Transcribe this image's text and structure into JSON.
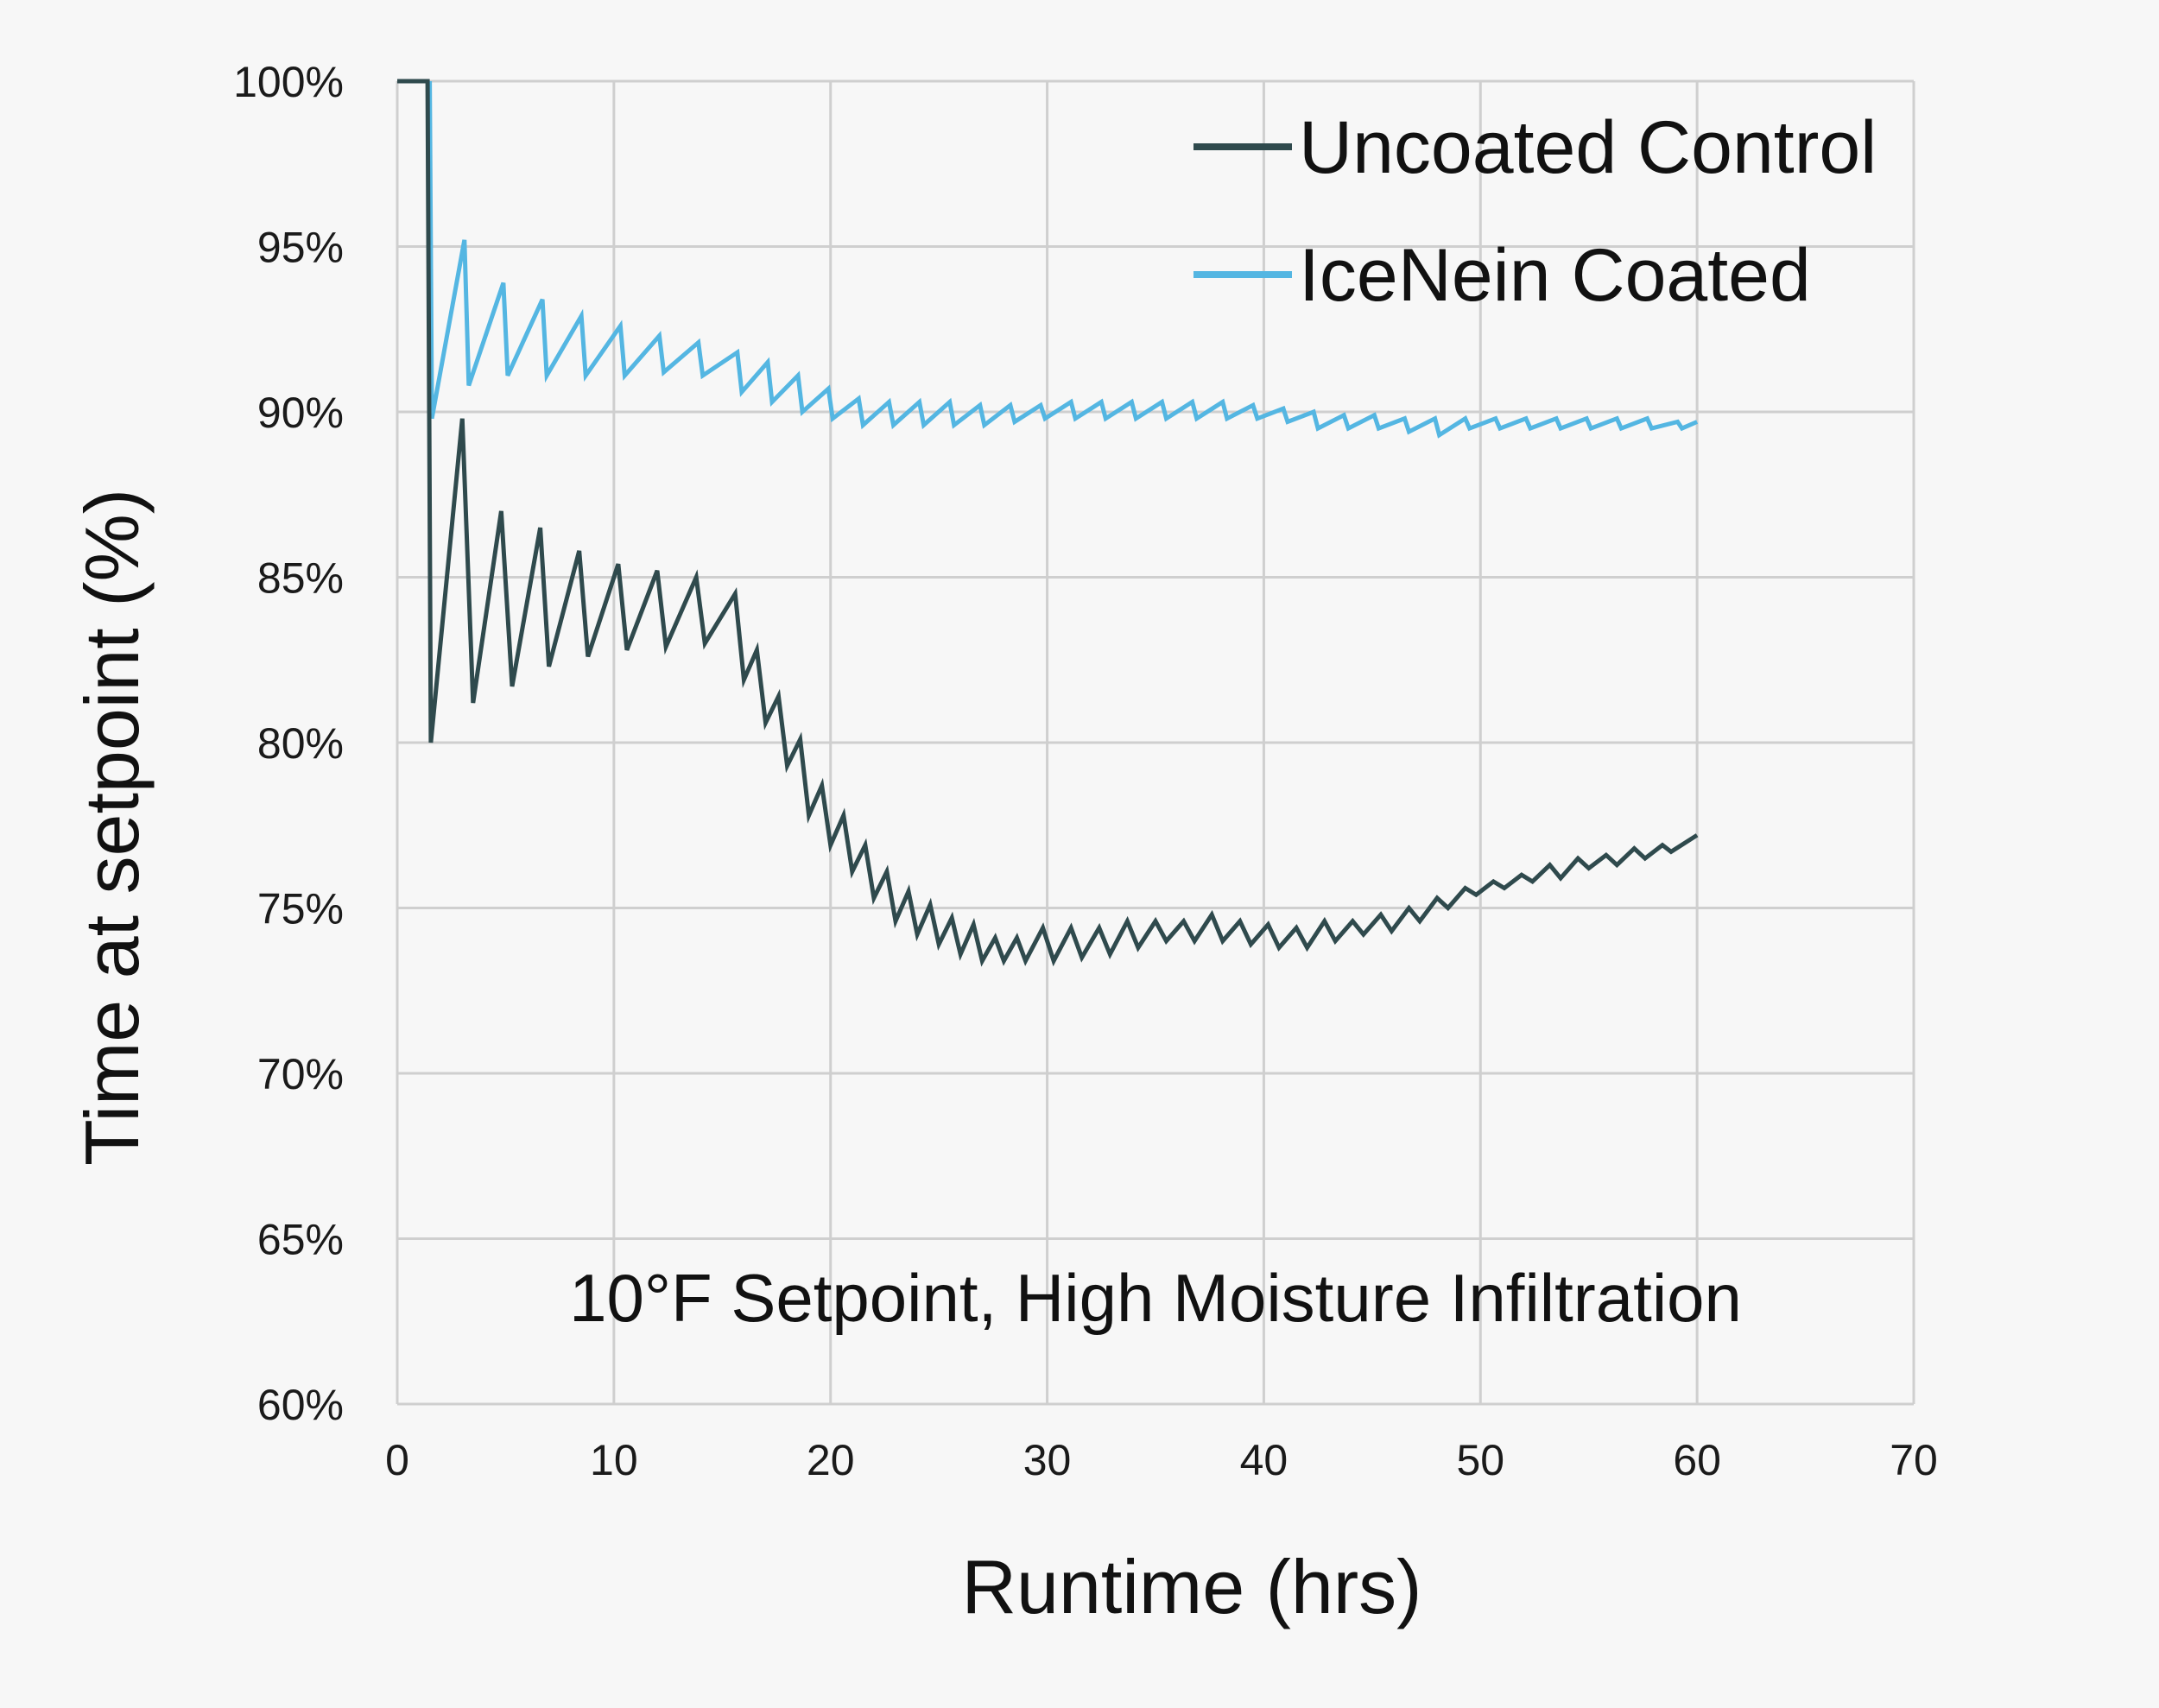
{
  "chart_data": {
    "type": "line",
    "title": "",
    "xlabel": "Runtime (hrs)",
    "ylabel": "Time at setpoint (%)",
    "xlim": [
      0,
      70
    ],
    "ylim": [
      60,
      100
    ],
    "x_ticks": [
      0,
      10,
      20,
      30,
      40,
      50,
      60,
      70
    ],
    "x_tick_labels": [
      "0",
      "10",
      "20",
      "30",
      "40",
      "50",
      "60",
      "70"
    ],
    "y_ticks": [
      60,
      65,
      70,
      75,
      80,
      85,
      90,
      95,
      100
    ],
    "y_tick_labels": [
      "60%",
      "65%",
      "70%",
      "75%",
      "80%",
      "85%",
      "90%",
      "95%",
      "100%"
    ],
    "grid": true,
    "legend_position": "top-right",
    "annotation": "10°F Setpoint, High Moisture Infiltration",
    "series": [
      {
        "name": "Uncoated Control",
        "color": "#2f4a4d",
        "points": [
          [
            0,
            100
          ],
          [
            1.4,
            100
          ],
          [
            1.55,
            80
          ],
          [
            3.0,
            89.8
          ],
          [
            3.5,
            81.2
          ],
          [
            4.8,
            87.0
          ],
          [
            5.3,
            81.7
          ],
          [
            6.6,
            86.5
          ],
          [
            7.0,
            82.3
          ],
          [
            8.4,
            85.8
          ],
          [
            8.8,
            82.6
          ],
          [
            10.2,
            85.4
          ],
          [
            10.6,
            82.8
          ],
          [
            12.0,
            85.2
          ],
          [
            12.4,
            82.9
          ],
          [
            13.8,
            85.0
          ],
          [
            14.2,
            83.0
          ],
          [
            15.6,
            84.5
          ],
          [
            16.0,
            81.9
          ],
          [
            16.6,
            82.8
          ],
          [
            17.0,
            80.6
          ],
          [
            17.6,
            81.4
          ],
          [
            18.0,
            79.3
          ],
          [
            18.6,
            80.1
          ],
          [
            19.0,
            77.8
          ],
          [
            19.6,
            78.7
          ],
          [
            20.0,
            76.9
          ],
          [
            20.6,
            77.8
          ],
          [
            21.0,
            76.1
          ],
          [
            21.6,
            76.9
          ],
          [
            22.0,
            75.3
          ],
          [
            22.6,
            76.1
          ],
          [
            23.0,
            74.6
          ],
          [
            23.6,
            75.5
          ],
          [
            24.0,
            74.2
          ],
          [
            24.6,
            75.1
          ],
          [
            25.0,
            73.9
          ],
          [
            25.6,
            74.7
          ],
          [
            26.0,
            73.6
          ],
          [
            26.6,
            74.5
          ],
          [
            27.0,
            73.4
          ],
          [
            27.6,
            74.1
          ],
          [
            28.0,
            73.4
          ],
          [
            28.6,
            74.1
          ],
          [
            29.0,
            73.4
          ],
          [
            29.8,
            74.4
          ],
          [
            30.3,
            73.4
          ],
          [
            31.1,
            74.4
          ],
          [
            31.6,
            73.5
          ],
          [
            32.4,
            74.4
          ],
          [
            32.9,
            73.6
          ],
          [
            33.7,
            74.6
          ],
          [
            34.2,
            73.8
          ],
          [
            35.0,
            74.6
          ],
          [
            35.5,
            74.0
          ],
          [
            36.3,
            74.6
          ],
          [
            36.8,
            74.0
          ],
          [
            37.6,
            74.8
          ],
          [
            38.1,
            74.0
          ],
          [
            38.9,
            74.6
          ],
          [
            39.4,
            73.9
          ],
          [
            40.2,
            74.5
          ],
          [
            40.7,
            73.8
          ],
          [
            41.5,
            74.4
          ],
          [
            42.0,
            73.8
          ],
          [
            42.8,
            74.6
          ],
          [
            43.3,
            74.0
          ],
          [
            44.1,
            74.6
          ],
          [
            44.6,
            74.2
          ],
          [
            45.4,
            74.8
          ],
          [
            45.9,
            74.3
          ],
          [
            46.7,
            75.0
          ],
          [
            47.2,
            74.6
          ],
          [
            48.0,
            75.3
          ],
          [
            48.5,
            75.0
          ],
          [
            49.3,
            75.6
          ],
          [
            49.8,
            75.4
          ],
          [
            50.6,
            75.8
          ],
          [
            51.1,
            75.6
          ],
          [
            51.9,
            76.0
          ],
          [
            52.4,
            75.8
          ],
          [
            53.2,
            76.3
          ],
          [
            53.7,
            75.9
          ],
          [
            54.5,
            76.5
          ],
          [
            55.0,
            76.2
          ],
          [
            55.8,
            76.6
          ],
          [
            56.3,
            76.3
          ],
          [
            57.1,
            76.8
          ],
          [
            57.6,
            76.5
          ],
          [
            58.4,
            76.9
          ],
          [
            58.8,
            76.7
          ],
          [
            60.0,
            77.2
          ]
        ]
      },
      {
        "name": "IceNein Coated",
        "color": "#54b6e2",
        "points": [
          [
            1.5,
            100
          ],
          [
            1.6,
            89.8
          ],
          [
            3.1,
            95.2
          ],
          [
            3.3,
            90.8
          ],
          [
            4.9,
            93.9
          ],
          [
            5.1,
            91.1
          ],
          [
            6.7,
            93.4
          ],
          [
            6.9,
            91.1
          ],
          [
            8.5,
            92.9
          ],
          [
            8.7,
            91.1
          ],
          [
            10.3,
            92.6
          ],
          [
            10.5,
            91.1
          ],
          [
            12.1,
            92.3
          ],
          [
            12.3,
            91.2
          ],
          [
            13.9,
            92.1
          ],
          [
            14.1,
            91.1
          ],
          [
            15.7,
            91.8
          ],
          [
            15.9,
            90.6
          ],
          [
            17.1,
            91.5
          ],
          [
            17.3,
            90.3
          ],
          [
            18.5,
            91.1
          ],
          [
            18.7,
            90.0
          ],
          [
            19.9,
            90.7
          ],
          [
            20.1,
            89.8
          ],
          [
            21.3,
            90.4
          ],
          [
            21.5,
            89.6
          ],
          [
            22.7,
            90.3
          ],
          [
            22.9,
            89.6
          ],
          [
            24.1,
            90.3
          ],
          [
            24.3,
            89.6
          ],
          [
            25.5,
            90.3
          ],
          [
            25.7,
            89.6
          ],
          [
            26.9,
            90.2
          ],
          [
            27.1,
            89.6
          ],
          [
            28.3,
            90.2
          ],
          [
            28.5,
            89.7
          ],
          [
            29.7,
            90.2
          ],
          [
            29.9,
            89.8
          ],
          [
            31.1,
            90.3
          ],
          [
            31.3,
            89.8
          ],
          [
            32.5,
            90.3
          ],
          [
            32.7,
            89.8
          ],
          [
            33.9,
            90.3
          ],
          [
            34.1,
            89.8
          ],
          [
            35.3,
            90.3
          ],
          [
            35.5,
            89.8
          ],
          [
            36.7,
            90.3
          ],
          [
            36.9,
            89.8
          ],
          [
            38.1,
            90.3
          ],
          [
            38.3,
            89.8
          ],
          [
            39.5,
            90.2
          ],
          [
            39.7,
            89.8
          ],
          [
            40.9,
            90.1
          ],
          [
            41.1,
            89.7
          ],
          [
            42.3,
            90.0
          ],
          [
            42.5,
            89.5
          ],
          [
            43.7,
            89.9
          ],
          [
            43.9,
            89.5
          ],
          [
            45.1,
            89.9
          ],
          [
            45.3,
            89.5
          ],
          [
            46.5,
            89.8
          ],
          [
            46.7,
            89.4
          ],
          [
            47.9,
            89.8
          ],
          [
            48.1,
            89.3
          ],
          [
            49.3,
            89.8
          ],
          [
            49.5,
            89.5
          ],
          [
            50.7,
            89.8
          ],
          [
            50.9,
            89.5
          ],
          [
            52.1,
            89.8
          ],
          [
            52.3,
            89.5
          ],
          [
            53.5,
            89.8
          ],
          [
            53.7,
            89.5
          ],
          [
            54.9,
            89.8
          ],
          [
            55.1,
            89.5
          ],
          [
            56.3,
            89.8
          ],
          [
            56.5,
            89.5
          ],
          [
            57.7,
            89.8
          ],
          [
            57.9,
            89.5
          ],
          [
            59.1,
            89.7
          ],
          [
            59.3,
            89.5
          ],
          [
            60.0,
            89.7
          ]
        ]
      }
    ]
  }
}
